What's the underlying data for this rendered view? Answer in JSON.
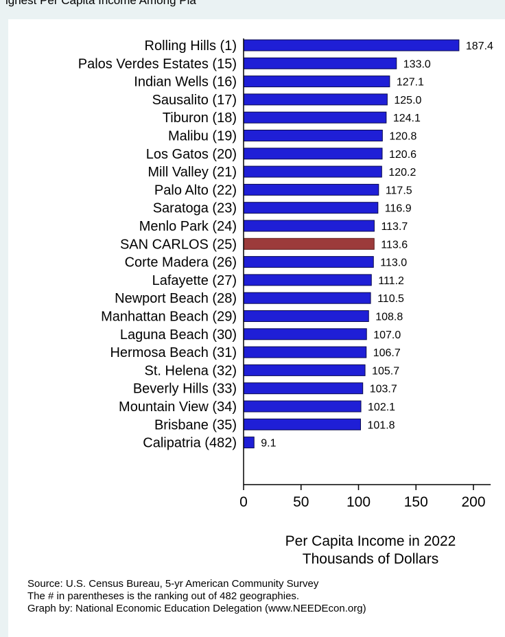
{
  "header": {
    "clipped_title": "ighest Per Capita Income Among Pla"
  },
  "chart_data": {
    "type": "bar",
    "orientation": "horizontal",
    "categories": [
      "Rolling Hills  (1)",
      "Palos Verdes Estates (15)",
      "Indian Wells (16)",
      "Sausalito (17)",
      "Tiburon (18)",
      "Malibu (19)",
      "Los Gatos (20)",
      "Mill Valley (21)",
      "Palo Alto (22)",
      "Saratoga (23)",
      "Menlo Park (24)",
      "SAN CARLOS (25)",
      "Corte Madera (26)",
      "Lafayette (27)",
      "Newport Beach (28)",
      "Manhattan Beach (29)",
      "Laguna Beach (30)",
      "Hermosa Beach (31)",
      "St. Helena (32)",
      "Beverly Hills (33)",
      "Mountain View (34)",
      "Brisbane (35)",
      "Calipatria (482)"
    ],
    "values": [
      187.4,
      133.0,
      127.1,
      125.0,
      124.1,
      120.8,
      120.6,
      120.2,
      117.5,
      116.9,
      113.7,
      113.6,
      113.0,
      111.2,
      110.5,
      108.8,
      107.0,
      106.7,
      105.7,
      103.7,
      102.1,
      101.8,
      9.1
    ],
    "value_labels": [
      "187.4",
      "133.0",
      "127.1",
      "125.0",
      "124.1",
      "120.8",
      "120.6",
      "120.2",
      "117.5",
      "116.9",
      "113.7",
      "113.6",
      "113.0",
      "111.2",
      "110.5",
      "108.8",
      "107.0",
      "106.7",
      "105.7",
      "103.7",
      "102.1",
      "101.8",
      "9.1"
    ],
    "highlight_category": "SAN CARLOS (25)",
    "xlim": [
      0,
      215
    ],
    "xticks": [
      0,
      50,
      100,
      150,
      200
    ],
    "xtick_labels": [
      "0",
      "50",
      "100",
      "150",
      "200"
    ],
    "xlabel_lines": [
      "Per Capita Income in 2022",
      "Thousands of Dollars"
    ],
    "ylabel": "",
    "grid": false,
    "colors": {
      "bar": "#1f1fd6",
      "bar_stroke": "#0a0a4d",
      "highlight": "#9c3b3b",
      "highlight_stroke": "#5a1c1c"
    }
  },
  "notes": [
    "Source: U.S. Census Bureau, 5-yr American Community Survey",
    "The # in parentheses is the ranking out of 482 geographies.",
    "Graph by: National Economic Education Delegation (www.NEEDEcon.org)"
  ],
  "colors": {
    "outer_background": "#eaf2f3",
    "plot_background": "#ffffff"
  }
}
